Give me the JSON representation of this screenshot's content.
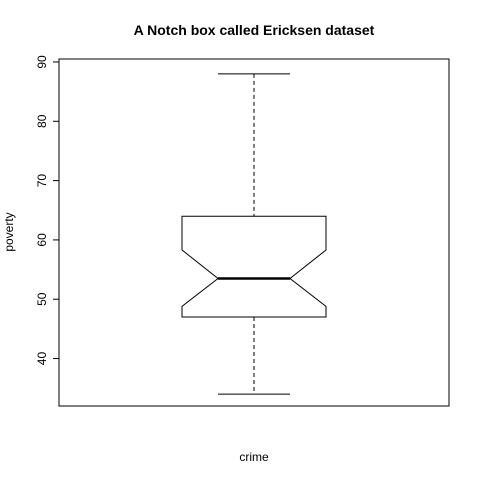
{
  "chart_data": {
    "type": "boxplot",
    "notched": true,
    "title": "A Notch box called Ericksen dataset",
    "xlabel": "crime",
    "ylabel": "poverty",
    "ylim": [
      32,
      90.5
    ],
    "yticks": [
      40,
      50,
      60,
      70,
      80,
      90
    ],
    "grid": false,
    "box": {
      "whisker_low": 34,
      "q1": 47,
      "median": 53.5,
      "q3": 64,
      "whisker_high": 88,
      "notch_low": 48.8,
      "notch_high": 58.3
    },
    "colors": {
      "line": "#000000",
      "background": "#ffffff"
    }
  }
}
